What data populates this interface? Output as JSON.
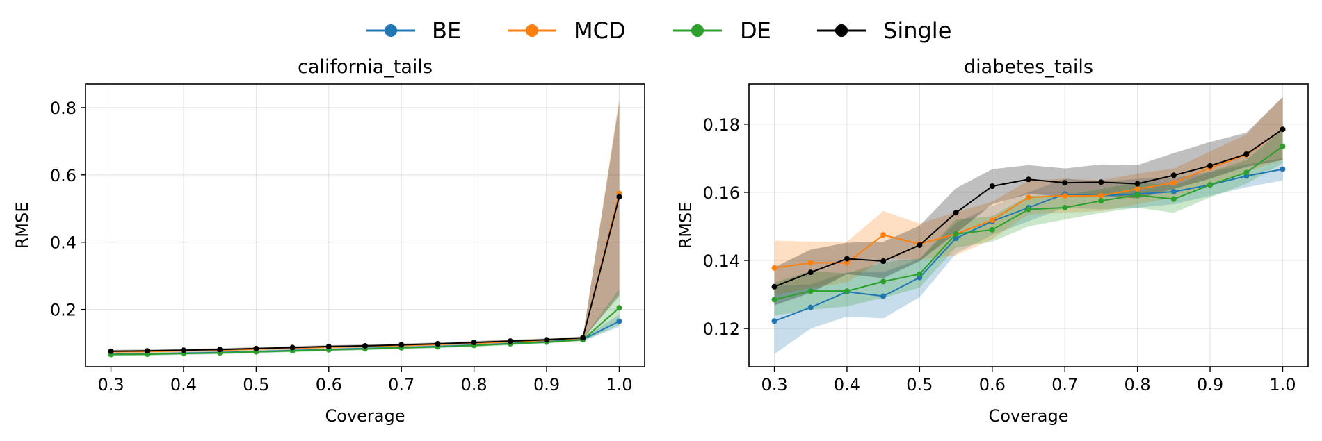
{
  "legend": {
    "placement": "top-center",
    "items": [
      {
        "key": "BE",
        "label": "BE",
        "color": "#1f77b4"
      },
      {
        "key": "MCD",
        "label": "MCD",
        "color": "#ff7f0e"
      },
      {
        "key": "DE",
        "label": "DE",
        "color": "#2ca02c"
      },
      {
        "key": "Single",
        "label": "Single",
        "color": "#000000"
      }
    ]
  },
  "chart_data": [
    {
      "type": "line",
      "title": "california_tails",
      "xlabel": "Coverage",
      "ylabel": "RMSE",
      "xlim": [
        0.265,
        1.035
      ],
      "ylim": [
        0.03,
        0.87
      ],
      "xticks": [
        0.3,
        0.4,
        0.5,
        0.6,
        0.7,
        0.8,
        0.9,
        1.0
      ],
      "xtick_labels": [
        "0.3",
        "0.4",
        "0.5",
        "0.6",
        "0.7",
        "0.8",
        "0.9",
        "1.0"
      ],
      "yticks": [
        0.2,
        0.4,
        0.6,
        0.8
      ],
      "ytick_labels": [
        "0.2",
        "0.4",
        "0.6",
        "0.8"
      ],
      "grid": true,
      "x": [
        0.3,
        0.35,
        0.4,
        0.45,
        0.5,
        0.55,
        0.6,
        0.65,
        0.7,
        0.75,
        0.8,
        0.85,
        0.9,
        0.95,
        1.0
      ],
      "series": [
        {
          "name": "BE",
          "color": "#1f77b4",
          "values": [
            0.067,
            0.068,
            0.07,
            0.072,
            0.075,
            0.078,
            0.081,
            0.084,
            0.087,
            0.09,
            0.094,
            0.099,
            0.104,
            0.111,
            0.165
          ],
          "lower": [
            0.063,
            0.064,
            0.066,
            0.068,
            0.071,
            0.074,
            0.077,
            0.08,
            0.083,
            0.086,
            0.09,
            0.095,
            0.1,
            0.107,
            0.148
          ],
          "upper": [
            0.071,
            0.072,
            0.074,
            0.076,
            0.079,
            0.082,
            0.085,
            0.088,
            0.091,
            0.094,
            0.098,
            0.103,
            0.108,
            0.115,
            0.185
          ]
        },
        {
          "name": "MCD",
          "color": "#ff7f0e",
          "values": [
            0.074,
            0.075,
            0.077,
            0.079,
            0.082,
            0.085,
            0.088,
            0.09,
            0.093,
            0.096,
            0.1,
            0.104,
            0.109,
            0.115,
            0.545
          ],
          "lower": [
            0.07,
            0.071,
            0.073,
            0.075,
            0.078,
            0.081,
            0.084,
            0.086,
            0.089,
            0.092,
            0.096,
            0.1,
            0.105,
            0.111,
            0.25
          ],
          "upper": [
            0.078,
            0.079,
            0.081,
            0.083,
            0.086,
            0.089,
            0.092,
            0.094,
            0.097,
            0.1,
            0.104,
            0.108,
            0.113,
            0.119,
            0.83
          ]
        },
        {
          "name": "DE",
          "color": "#2ca02c",
          "values": [
            0.066,
            0.067,
            0.069,
            0.071,
            0.074,
            0.077,
            0.08,
            0.083,
            0.086,
            0.089,
            0.093,
            0.098,
            0.103,
            0.11,
            0.205
          ],
          "lower": [
            0.062,
            0.063,
            0.065,
            0.067,
            0.07,
            0.073,
            0.076,
            0.079,
            0.082,
            0.085,
            0.089,
            0.094,
            0.099,
            0.106,
            0.155
          ],
          "upper": [
            0.07,
            0.071,
            0.073,
            0.075,
            0.078,
            0.081,
            0.084,
            0.087,
            0.09,
            0.093,
            0.097,
            0.102,
            0.107,
            0.114,
            0.26
          ]
        },
        {
          "name": "Single",
          "color": "#000000",
          "values": [
            0.076,
            0.077,
            0.079,
            0.081,
            0.084,
            0.087,
            0.09,
            0.092,
            0.095,
            0.098,
            0.102,
            0.106,
            0.11,
            0.116,
            0.535
          ],
          "lower": [
            0.072,
            0.073,
            0.075,
            0.077,
            0.08,
            0.083,
            0.086,
            0.088,
            0.091,
            0.094,
            0.098,
            0.102,
            0.106,
            0.112,
            0.24
          ],
          "upper": [
            0.08,
            0.081,
            0.083,
            0.085,
            0.088,
            0.091,
            0.094,
            0.096,
            0.099,
            0.102,
            0.106,
            0.11,
            0.114,
            0.12,
            0.815
          ]
        }
      ]
    },
    {
      "type": "line",
      "title": "diabetes_tails",
      "xlabel": "Coverage",
      "ylabel": "RMSE",
      "xlim": [
        0.265,
        1.035
      ],
      "ylim": [
        0.1088,
        0.1918
      ],
      "xticks": [
        0.3,
        0.4,
        0.5,
        0.6,
        0.7,
        0.8,
        0.9,
        1.0
      ],
      "xtick_labels": [
        "0.3",
        "0.4",
        "0.5",
        "0.6",
        "0.7",
        "0.8",
        "0.9",
        "1.0"
      ],
      "yticks": [
        0.12,
        0.14,
        0.16,
        0.18
      ],
      "ytick_labels": [
        "0.12",
        "0.14",
        "0.16",
        "0.18"
      ],
      "grid": true,
      "x": [
        0.3,
        0.35,
        0.4,
        0.45,
        0.5,
        0.55,
        0.6,
        0.65,
        0.7,
        0.75,
        0.8,
        0.85,
        0.9,
        0.95,
        1.0
      ],
      "series": [
        {
          "name": "BE",
          "color": "#1f77b4",
          "values": [
            0.1222,
            0.1262,
            0.1308,
            0.1295,
            0.135,
            0.1465,
            0.1515,
            0.1555,
            0.1595,
            0.159,
            0.1595,
            0.1602,
            0.1622,
            0.1648,
            0.1668
          ],
          "lower": [
            0.1125,
            0.12,
            0.1235,
            0.123,
            0.1292,
            0.142,
            0.1475,
            0.1515,
            0.1555,
            0.155,
            0.1555,
            0.1565,
            0.159,
            0.1615,
            0.1635
          ],
          "upper": [
            0.1325,
            0.133,
            0.1365,
            0.1365,
            0.1405,
            0.151,
            0.156,
            0.16,
            0.164,
            0.163,
            0.164,
            0.1642,
            0.166,
            0.1682,
            0.17
          ]
        },
        {
          "name": "MCD",
          "color": "#ff7f0e",
          "values": [
            0.1378,
            0.1393,
            0.1393,
            0.1475,
            0.1448,
            0.1478,
            0.1518,
            0.1585,
            0.159,
            0.159,
            0.161,
            0.1628,
            0.1672,
            0.171,
            0.1785
          ],
          "lower": [
            0.1298,
            0.132,
            0.1335,
            0.1405,
            0.1402,
            0.1415,
            0.1462,
            0.1535,
            0.154,
            0.1545,
            0.1565,
            0.1585,
            0.1625,
            0.166,
            0.1695
          ],
          "upper": [
            0.1458,
            0.1455,
            0.1455,
            0.1545,
            0.1508,
            0.1542,
            0.1572,
            0.1635,
            0.164,
            0.1635,
            0.1655,
            0.167,
            0.172,
            0.177,
            0.188
          ]
        },
        {
          "name": "DE",
          "color": "#2ca02c",
          "values": [
            0.1285,
            0.131,
            0.131,
            0.1338,
            0.136,
            0.1478,
            0.149,
            0.155,
            0.1555,
            0.1575,
            0.1592,
            0.158,
            0.1622,
            0.1658,
            0.1735
          ],
          "lower": [
            0.1238,
            0.1255,
            0.1265,
            0.129,
            0.132,
            0.1438,
            0.1455,
            0.15,
            0.152,
            0.154,
            0.1555,
            0.154,
            0.1585,
            0.1625,
            0.1685
          ],
          "upper": [
            0.1335,
            0.1368,
            0.1362,
            0.1395,
            0.1405,
            0.152,
            0.153,
            0.159,
            0.1592,
            0.161,
            0.163,
            0.162,
            0.166,
            0.1695,
            0.1785
          ]
        },
        {
          "name": "Single",
          "color": "#000000",
          "values": [
            0.1323,
            0.1365,
            0.1405,
            0.1398,
            0.1445,
            0.154,
            0.1618,
            0.1638,
            0.1628,
            0.163,
            0.1625,
            0.165,
            0.1678,
            0.1712,
            0.1785
          ],
          "lower": [
            0.1268,
            0.1305,
            0.136,
            0.1348,
            0.1398,
            0.148,
            0.1565,
            0.1595,
            0.1588,
            0.159,
            0.1582,
            0.161,
            0.164,
            0.1675,
            0.1695
          ],
          "upper": [
            0.138,
            0.1432,
            0.1452,
            0.1455,
            0.1502,
            0.1612,
            0.1668,
            0.168,
            0.167,
            0.1682,
            0.168,
            0.1715,
            0.1748,
            0.1775,
            0.188
          ]
        }
      ]
    }
  ]
}
